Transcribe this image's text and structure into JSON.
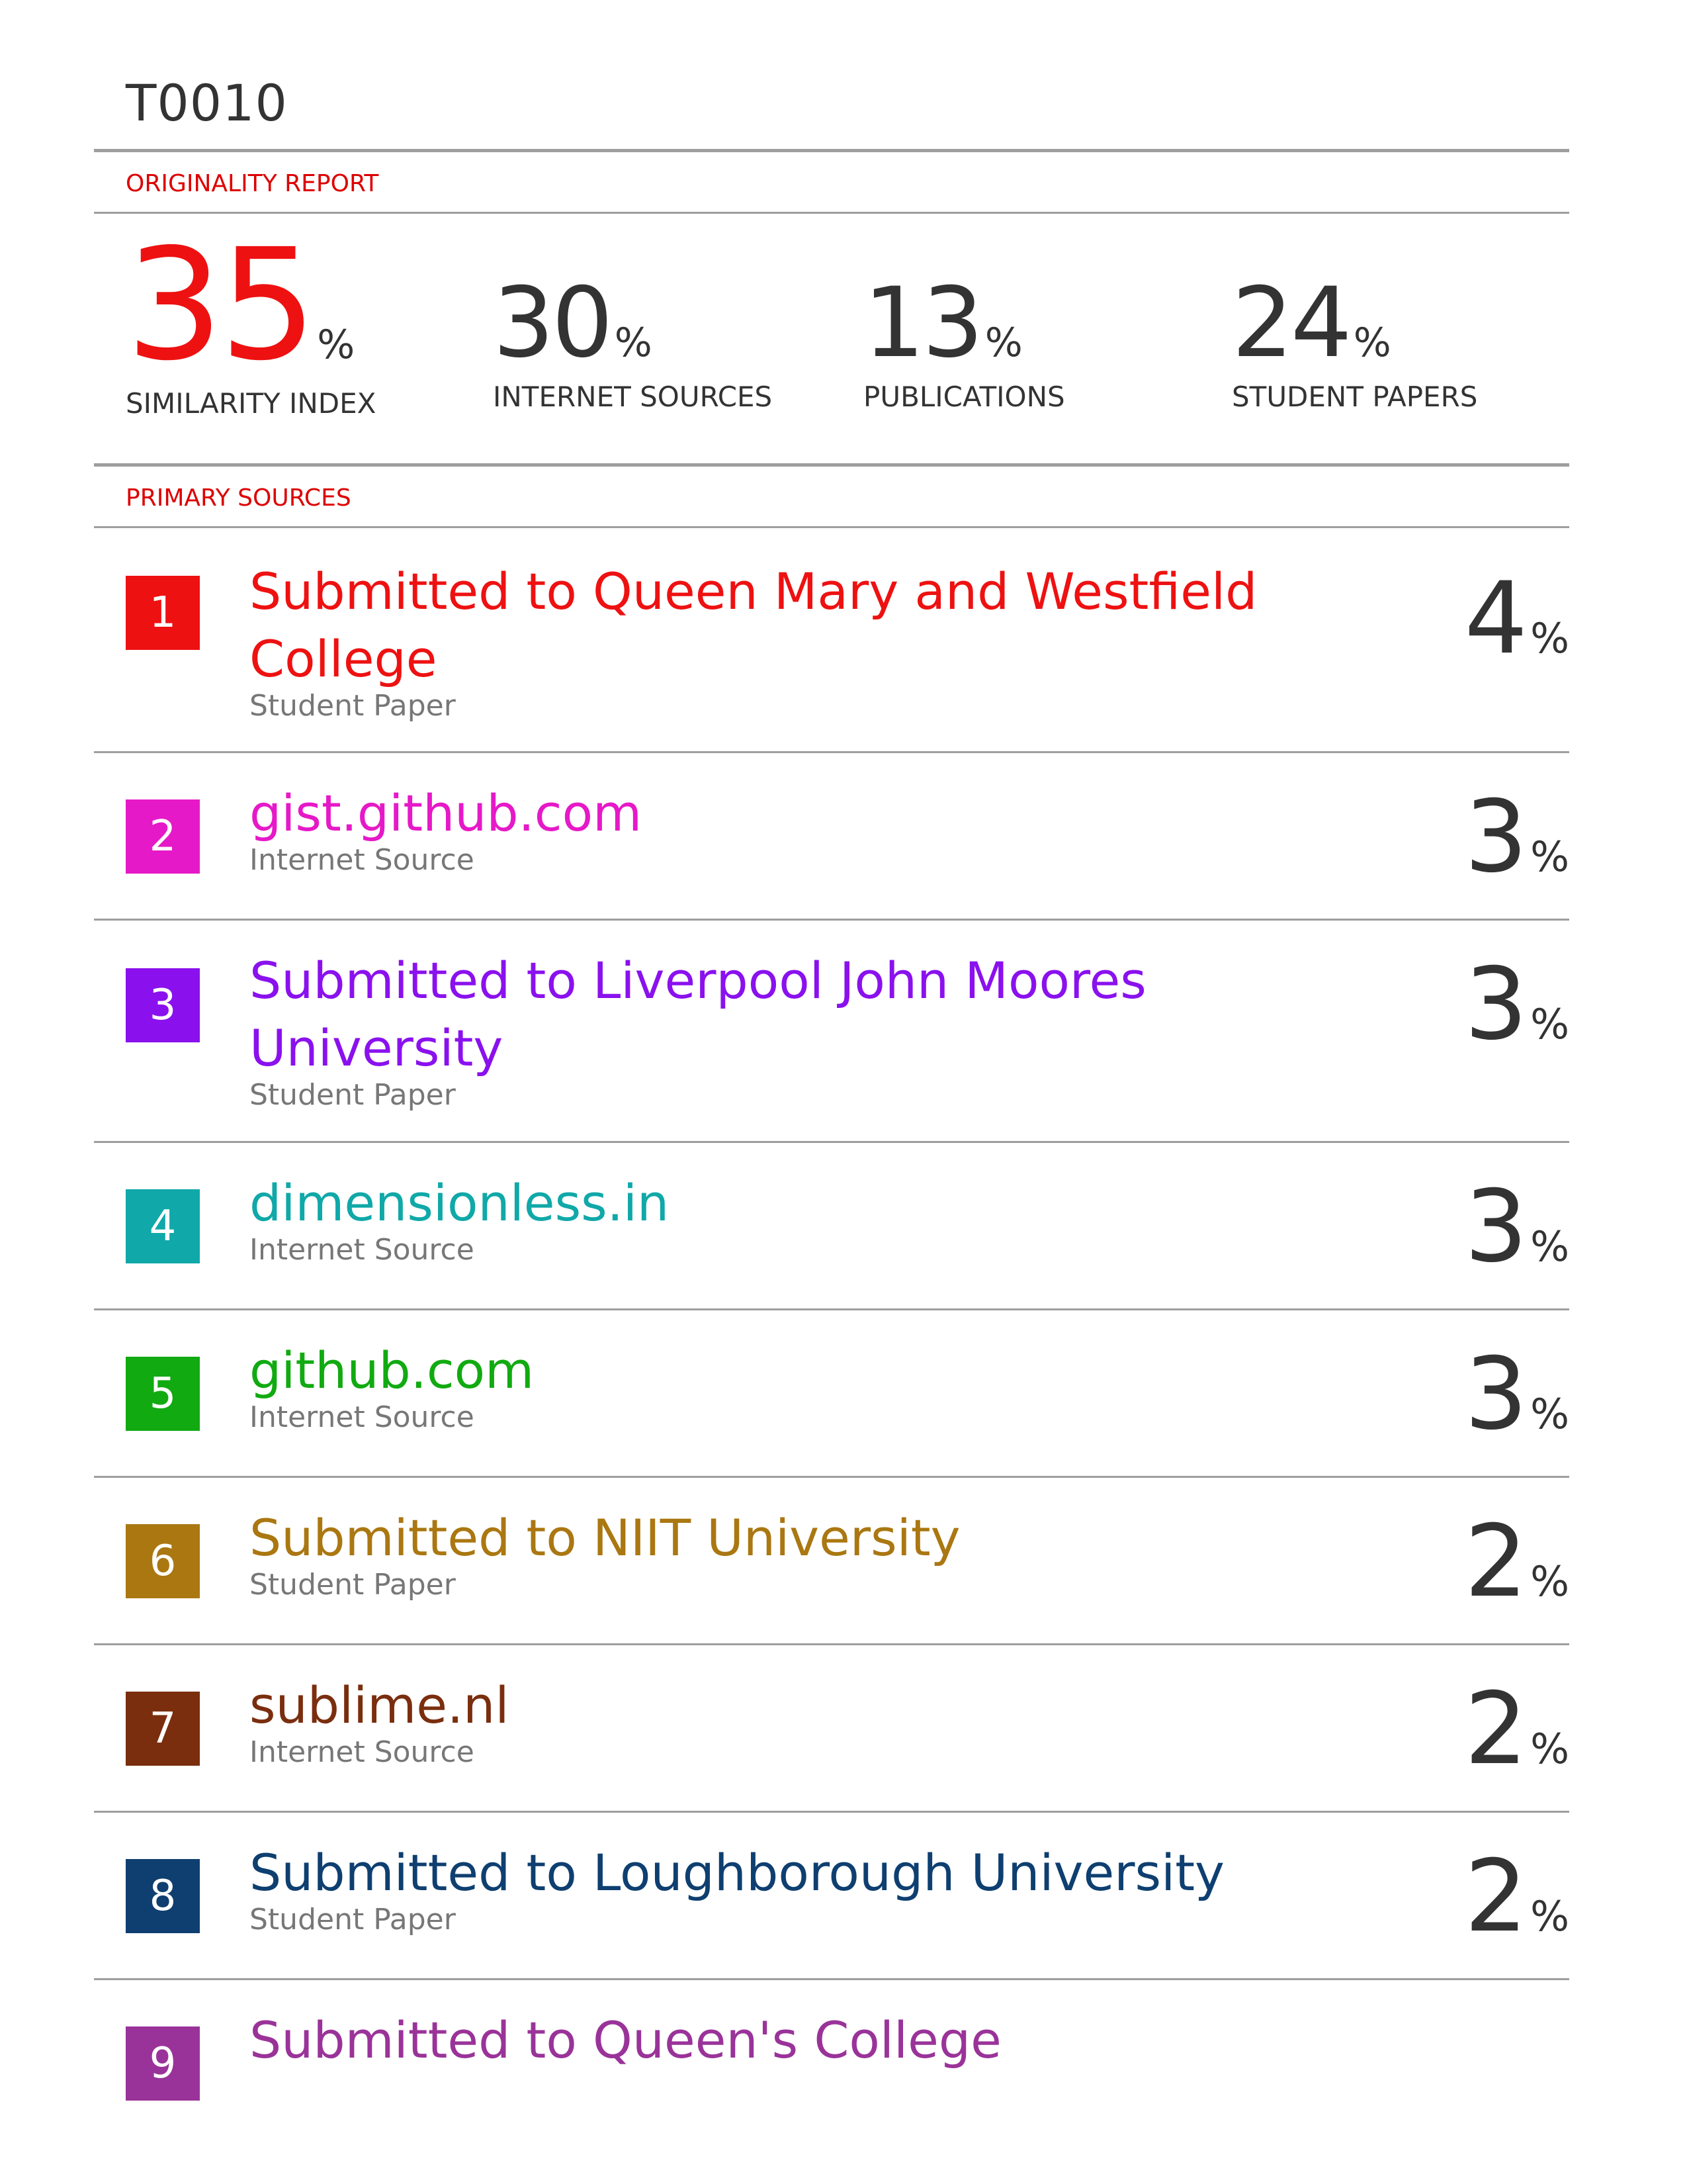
{
  "document": {
    "title": "T0010"
  },
  "originality_report": {
    "label": "ORIGINALITY REPORT",
    "stats": [
      {
        "value": "35",
        "percent_sign": "%",
        "label": "SIMILARITY INDEX"
      },
      {
        "value": "30",
        "percent_sign": "%",
        "label": "INTERNET SOURCES"
      },
      {
        "value": "13",
        "percent_sign": "%",
        "label": "PUBLICATIONS"
      },
      {
        "value": "24",
        "percent_sign": "%",
        "label": "STUDENT PAPERS"
      }
    ]
  },
  "primary_sources": {
    "label": "PRIMARY SOURCES",
    "items": [
      {
        "rank": "1",
        "title": "Submitted to Queen Mary and Westfield College",
        "type": "Student Paper",
        "percent": "4",
        "percent_sign": "%",
        "color": "#ee1111"
      },
      {
        "rank": "2",
        "title": "gist.github.com",
        "type": "Internet Source",
        "percent": "3",
        "percent_sign": "%",
        "color": "#e619c8"
      },
      {
        "rank": "3",
        "title": "Submitted to Liverpool John Moores University",
        "type": "Student Paper",
        "percent": "3",
        "percent_sign": "%",
        "color": "#8a11ee"
      },
      {
        "rank": "4",
        "title": "dimensionless.in",
        "type": "Internet Source",
        "percent": "3",
        "percent_sign": "%",
        "color": "#10a8a8"
      },
      {
        "rank": "5",
        "title": "github.com",
        "type": "Internet Source",
        "percent": "3",
        "percent_sign": "%",
        "color": "#11aa11"
      },
      {
        "rank": "6",
        "title": "Submitted to NIIT University",
        "type": "Student Paper",
        "percent": "2",
        "percent_sign": "%",
        "color": "#aa7711"
      },
      {
        "rank": "7",
        "title": "sublime.nl",
        "type": "Internet Source",
        "percent": "2",
        "percent_sign": "%",
        "color": "#7a2e0e"
      },
      {
        "rank": "8",
        "title": "Submitted to Loughborough University",
        "type": "Student Paper",
        "percent": "2",
        "percent_sign": "%",
        "color": "#0e3f70"
      },
      {
        "rank": "9",
        "title": "Submitted to Queen's College",
        "color": "#9a3399"
      }
    ]
  }
}
